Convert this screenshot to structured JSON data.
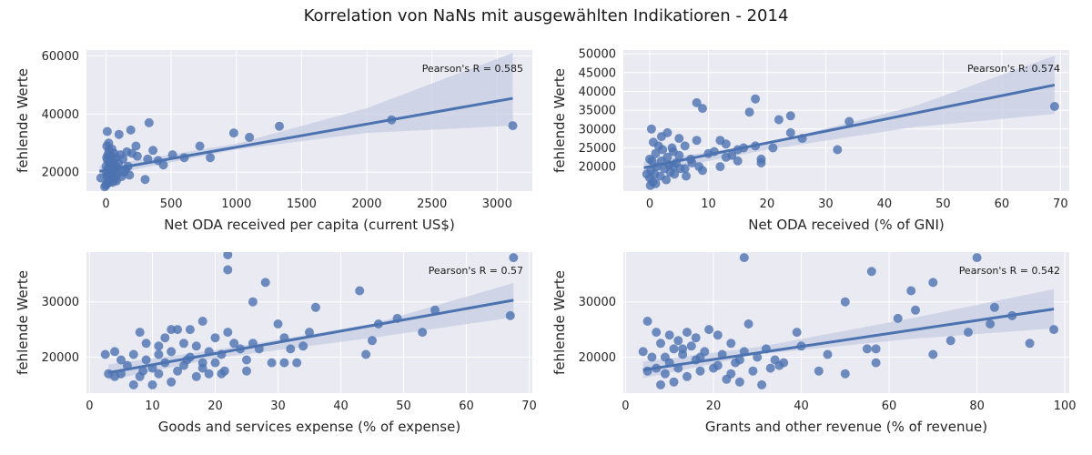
{
  "figure_title": "Korrelation von NaNs mit ausgewählten Indikatioren - 2014",
  "colors": {
    "point": "#4c72b0",
    "line": "#4c72b0",
    "band": "#c5cee3",
    "panel_bg": "#eaeaf2",
    "grid": "#ffffff"
  },
  "chart_data": [
    {
      "type": "scatter",
      "xlabel": "Net ODA received per capita (current US$)",
      "ylabel": "fehlende Werte",
      "annotation": "Pearson's R = 0.585",
      "xlim": [
        -150,
        3270
      ],
      "ylim": [
        13500,
        62000
      ],
      "xticks": [
        0,
        500,
        1000,
        1500,
        2000,
        2500,
        3000
      ],
      "yticks": [
        20000,
        40000,
        60000
      ],
      "regression": {
        "x": [
          -50,
          3120
        ],
        "y": [
          20300,
          45400
        ]
      },
      "ci_band": {
        "x": [
          -50,
          1000,
          2000,
          3120
        ],
        "lower": [
          18500,
          27800,
          33500,
          36000
        ],
        "upper": [
          22000,
          29800,
          42000,
          61000
        ]
      },
      "points": [
        [
          3120,
          36000
        ],
        [
          2190,
          38000
        ],
        [
          1330,
          35800
        ],
        [
          1100,
          32000
        ],
        [
          980,
          33500
        ],
        [
          800,
          25000
        ],
        [
          720,
          29000
        ],
        [
          600,
          25000
        ],
        [
          510,
          26000
        ],
        [
          440,
          22500
        ],
        [
          400,
          24000
        ],
        [
          360,
          27500
        ],
        [
          330,
          37000
        ],
        [
          320,
          24500
        ],
        [
          300,
          17500
        ],
        [
          240,
          25500
        ],
        [
          230,
          29000
        ],
        [
          200,
          26500
        ],
        [
          190,
          34500
        ],
        [
          180,
          19000
        ],
        [
          170,
          22000
        ],
        [
          160,
          27000
        ],
        [
          150,
          21000
        ],
        [
          140,
          20000
        ],
        [
          130,
          24500
        ],
        [
          120,
          18500
        ],
        [
          110,
          26000
        ],
        [
          100,
          33000
        ],
        [
          95,
          23000
        ],
        [
          90,
          19500
        ],
        [
          85,
          21500
        ],
        [
          80,
          17000
        ],
        [
          75,
          25000
        ],
        [
          70,
          20000
        ],
        [
          65,
          22500
        ],
        [
          60,
          18000
        ],
        [
          55,
          24000
        ],
        [
          50,
          16500
        ],
        [
          45,
          28000
        ],
        [
          40,
          20500
        ],
        [
          35,
          19000
        ],
        [
          30,
          23500
        ],
        [
          25,
          17500
        ],
        [
          20,
          30000
        ],
        [
          15,
          21000
        ],
        [
          10,
          34000
        ],
        [
          8,
          18500
        ],
        [
          5,
          25000
        ],
        [
          3,
          16000
        ],
        [
          2,
          20000
        ],
        [
          1,
          22000
        ],
        [
          0,
          15500
        ],
        [
          12,
          24000
        ],
        [
          18,
          19500
        ],
        [
          22,
          27500
        ],
        [
          28,
          22000
        ],
        [
          33,
          18000
        ],
        [
          38,
          25500
        ],
        [
          42,
          20500
        ],
        [
          48,
          23000
        ],
        [
          52,
          19000
        ],
        [
          58,
          21500
        ],
        [
          62,
          26500
        ],
        [
          68,
          17500
        ],
        [
          -40,
          18000
        ],
        [
          -10,
          15000
        ],
        [
          6,
          29000
        ],
        [
          14,
          26000
        ],
        [
          26,
          16500
        ],
        [
          36,
          21000
        ]
      ]
    },
    {
      "type": "scatter",
      "xlabel": "Net ODA received (% of GNI)",
      "ylabel": "fehlende Werte",
      "annotation": "Pearson's R: 0.574",
      "xlim": [
        -4.5,
        71.5
      ],
      "ylim": [
        13500,
        51000
      ],
      "xticks": [
        0,
        10,
        20,
        30,
        40,
        50,
        60,
        70
      ],
      "yticks": [
        20000,
        25000,
        30000,
        35000,
        40000,
        45000,
        50000
      ],
      "regression": {
        "x": [
          -1,
          69
        ],
        "y": [
          19700,
          41700
        ]
      },
      "ci_band": {
        "x": [
          -1,
          20,
          45,
          69
        ],
        "lower": [
          18200,
          24500,
          30500,
          34000
        ],
        "upper": [
          21300,
          26200,
          36000,
          49500
        ]
      },
      "points": [
        [
          69,
          36000
        ],
        [
          34,
          32000
        ],
        [
          32,
          24500
        ],
        [
          26,
          27500
        ],
        [
          24,
          33500
        ],
        [
          24,
          29000
        ],
        [
          22,
          32500
        ],
        [
          21,
          25000
        ],
        [
          19,
          21000
        ],
        [
          19,
          22000
        ],
        [
          18,
          38000
        ],
        [
          18,
          25500
        ],
        [
          17,
          34500
        ],
        [
          16,
          25000
        ],
        [
          15,
          24500
        ],
        [
          15,
          21500
        ],
        [
          13,
          22500
        ],
        [
          13,
          26000
        ],
        [
          12,
          27000
        ],
        [
          12,
          20000
        ],
        [
          10,
          23500
        ],
        [
          9,
          35500
        ],
        [
          9,
          19000
        ],
        [
          8,
          37000
        ],
        [
          8,
          27000
        ],
        [
          7,
          22000
        ],
        [
          6,
          25500
        ],
        [
          6,
          19500
        ],
        [
          5,
          27500
        ],
        [
          5,
          23000
        ],
        [
          4.5,
          21000
        ],
        [
          4,
          20000
        ],
        [
          4,
          24000
        ],
        [
          3.5,
          18500
        ],
        [
          3,
          29000
        ],
        [
          3,
          22500
        ],
        [
          2.5,
          19500
        ],
        [
          2,
          28000
        ],
        [
          2,
          21500
        ],
        [
          1.8,
          17500
        ],
        [
          1.5,
          25500
        ],
        [
          1.2,
          20000
        ],
        [
          1,
          23500
        ],
        [
          0.8,
          18000
        ],
        [
          0.6,
          26500
        ],
        [
          0.5,
          16000
        ],
        [
          0.4,
          21500
        ],
        [
          0.3,
          30000
        ],
        [
          0.2,
          19000
        ],
        [
          0.1,
          15000
        ],
        [
          0,
          22000
        ],
        [
          0,
          17000
        ],
        [
          -0.5,
          18000
        ],
        [
          1,
          15500
        ],
        [
          2.2,
          24500
        ],
        [
          2.8,
          16500
        ],
        [
          3.3,
          20500
        ],
        [
          3.8,
          25000
        ],
        [
          4.2,
          18000
        ],
        [
          5.2,
          19500
        ],
        [
          6.2,
          17500
        ],
        [
          7.2,
          21000
        ],
        [
          8.4,
          20000
        ],
        [
          11,
          24000
        ],
        [
          14,
          23000
        ]
      ]
    },
    {
      "type": "scatter",
      "xlabel": "Goods and services expense (% of expense)",
      "ylabel": "fehlende Werte",
      "annotation": "Pearson's R = 0.57",
      "xlim": [
        -0.5,
        70.5
      ],
      "ylim": [
        13500,
        39000
      ],
      "xticks": [
        0,
        10,
        20,
        30,
        40,
        50,
        60,
        70
      ],
      "yticks": [
        20000,
        30000
      ],
      "regression": {
        "x": [
          3,
          67.5
        ],
        "y": [
          17200,
          30300
        ]
      },
      "ci_band": {
        "x": [
          3,
          20,
          45,
          67.5
        ],
        "lower": [
          15800,
          19800,
          23500,
          27200
        ],
        "upper": [
          18700,
          21300,
          26000,
          33400
        ]
      },
      "points": [
        [
          67.5,
          38000
        ],
        [
          67,
          27500
        ],
        [
          55,
          28500
        ],
        [
          53,
          24500
        ],
        [
          49,
          27000
        ],
        [
          46,
          26000
        ],
        [
          45,
          23000
        ],
        [
          44,
          20500
        ],
        [
          43,
          32000
        ],
        [
          36,
          29000
        ],
        [
          35,
          24500
        ],
        [
          34,
          22000
        ],
        [
          33,
          19000
        ],
        [
          32,
          21500
        ],
        [
          31,
          23500
        ],
        [
          31,
          19000
        ],
        [
          30,
          26000
        ],
        [
          28,
          33500
        ],
        [
          26,
          30000
        ],
        [
          25,
          19500
        ],
        [
          25,
          17500
        ],
        [
          24,
          21500
        ],
        [
          23,
          22500
        ],
        [
          22,
          38500
        ],
        [
          22,
          35800
        ],
        [
          22,
          24500
        ],
        [
          21,
          20500
        ],
        [
          21,
          17000
        ],
        [
          20,
          23500
        ],
        [
          20,
          19000
        ],
        [
          19,
          21000
        ],
        [
          18,
          26500
        ],
        [
          18,
          18000
        ],
        [
          17,
          22000
        ],
        [
          17,
          16500
        ],
        [
          16,
          25000
        ],
        [
          16,
          20000
        ],
        [
          15,
          18500
        ],
        [
          15,
          22500
        ],
        [
          14,
          17500
        ],
        [
          14,
          25000
        ],
        [
          13,
          21000
        ],
        [
          13,
          15500
        ],
        [
          12,
          19000
        ],
        [
          12,
          23500
        ],
        [
          11,
          17000
        ],
        [
          11,
          20500
        ],
        [
          10,
          18000
        ],
        [
          10,
          15000
        ],
        [
          9,
          22500
        ],
        [
          9,
          19500
        ],
        [
          8,
          16500
        ],
        [
          8,
          24500
        ],
        [
          7,
          20500
        ],
        [
          7,
          15000
        ],
        [
          6,
          18500
        ],
        [
          5,
          17000
        ],
        [
          5,
          19500
        ],
        [
          4,
          16500
        ],
        [
          4,
          21000
        ],
        [
          3,
          17000
        ],
        [
          2.5,
          20500
        ],
        [
          18,
          19000
        ],
        [
          13,
          25000
        ],
        [
          21.5,
          17500
        ],
        [
          27,
          21500
        ],
        [
          29,
          19000
        ],
        [
          26,
          22500
        ],
        [
          19,
          17000
        ],
        [
          11,
          22000
        ],
        [
          8.5,
          17500
        ],
        [
          15.5,
          19500
        ]
      ]
    },
    {
      "type": "scatter",
      "xlabel": "Grants and other revenue (% of revenue)",
      "ylabel": "fehlende Werte",
      "annotation": "Pearson's R = 0.542",
      "xlim": [
        -0.5,
        101
      ],
      "ylim": [
        13500,
        39000
      ],
      "xticks": [
        0,
        20,
        40,
        60,
        80,
        100
      ],
      "yticks": [
        20000,
        30000
      ],
      "regression": {
        "x": [
          4,
          97.5
        ],
        "y": [
          17700,
          28700
        ]
      },
      "ci_band": {
        "x": [
          4,
          30,
          65,
          97.5
        ],
        "lower": [
          16200,
          20500,
          23300,
          25200
        ],
        "upper": [
          19200,
          21800,
          27000,
          32300
        ]
      },
      "points": [
        [
          97.5,
          25000
        ],
        [
          92,
          22500
        ],
        [
          88,
          27500
        ],
        [
          84,
          29000
        ],
        [
          83,
          26000
        ],
        [
          80,
          38000
        ],
        [
          78,
          24500
        ],
        [
          74,
          23000
        ],
        [
          70,
          20500
        ],
        [
          70,
          33500
        ],
        [
          66,
          28500
        ],
        [
          65,
          32000
        ],
        [
          62,
          27000
        ],
        [
          57,
          21500
        ],
        [
          57,
          19000
        ],
        [
          56,
          35500
        ],
        [
          55,
          21500
        ],
        [
          50,
          30000
        ],
        [
          50,
          17000
        ],
        [
          46,
          20500
        ],
        [
          44,
          17500
        ],
        [
          40,
          22000
        ],
        [
          39,
          24500
        ],
        [
          35,
          18500
        ],
        [
          34,
          19500
        ],
        [
          32,
          21500
        ],
        [
          31,
          15000
        ],
        [
          30,
          20000
        ],
        [
          29,
          17500
        ],
        [
          28,
          26000
        ],
        [
          27,
          38000
        ],
        [
          27,
          21000
        ],
        [
          26,
          15500
        ],
        [
          25,
          19000
        ],
        [
          24,
          22500
        ],
        [
          23,
          16000
        ],
        [
          22,
          20500
        ],
        [
          21,
          24000
        ],
        [
          20,
          18000
        ],
        [
          19,
          25000
        ],
        [
          18,
          21000
        ],
        [
          17,
          17500
        ],
        [
          16,
          23500
        ],
        [
          16,
          19500
        ],
        [
          15,
          22000
        ],
        [
          14,
          16500
        ],
        [
          14,
          24500
        ],
        [
          13,
          20500
        ],
        [
          12,
          18000
        ],
        [
          12,
          23000
        ],
        [
          11,
          15500
        ],
        [
          11,
          21500
        ],
        [
          10,
          19000
        ],
        [
          10,
          24000
        ],
        [
          9,
          17000
        ],
        [
          9,
          20000
        ],
        [
          8,
          22500
        ],
        [
          8,
          15000
        ],
        [
          7,
          18000
        ],
        [
          7,
          24500
        ],
        [
          6,
          20000
        ],
        [
          5,
          26500
        ],
        [
          5,
          17500
        ],
        [
          4,
          21000
        ],
        [
          13,
          21500
        ],
        [
          17,
          20000
        ],
        [
          21,
          18500
        ],
        [
          24,
          17000
        ],
        [
          26,
          19500
        ],
        [
          33,
          18000
        ],
        [
          36,
          19000
        ]
      ]
    }
  ]
}
